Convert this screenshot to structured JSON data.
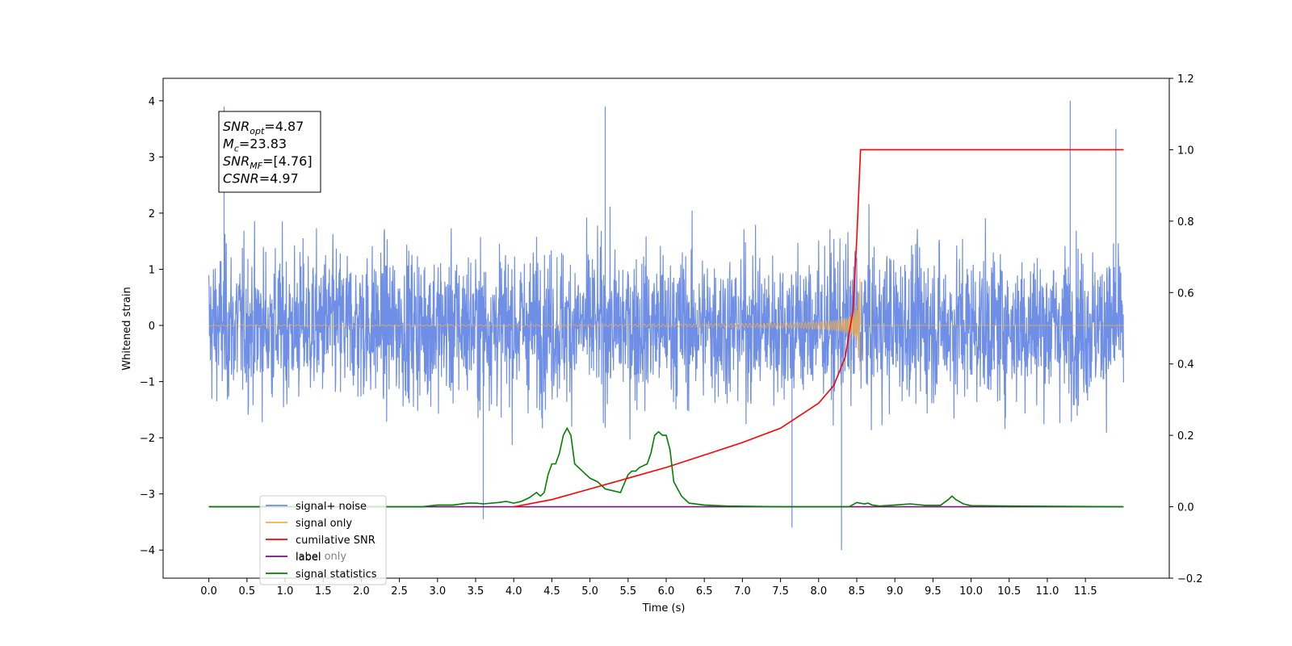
{
  "chart_data": {
    "type": "line",
    "title": "",
    "xlabel": "Time (s)",
    "ylabel": "Whitened strain",
    "xlim": [
      -0.6,
      12.6
    ],
    "ylim": [
      -4.5,
      4.4
    ],
    "y2lim": [
      -0.2,
      1.2
    ],
    "x_ticks": [
      0.0,
      0.5,
      1.0,
      1.5,
      2.0,
      2.5,
      3.0,
      3.5,
      4.0,
      4.5,
      5.0,
      5.5,
      6.0,
      6.5,
      7.0,
      7.5,
      8.0,
      8.5,
      9.0,
      9.5,
      10.0,
      10.5,
      11.0,
      11.5
    ],
    "x_tick_labels": [
      "0.0",
      "0.5",
      "1.0",
      "1.5",
      "2.0",
      "2.5",
      "3.0",
      "3.5",
      "4.0",
      "4.5",
      "5.0",
      "5.5",
      "6.0",
      "6.5",
      "7.0",
      "7.5",
      "8.0",
      "8.5",
      "9.0",
      "9.5",
      "10.0",
      "10.5",
      "11.0",
      "11.5"
    ],
    "y_ticks": [
      -4,
      -3,
      -2,
      -1,
      0,
      1,
      2,
      3,
      4
    ],
    "y_tick_labels": [
      "−4",
      "−3",
      "−2",
      "−1",
      "0",
      "1",
      "2",
      "3",
      "4"
    ],
    "y2_ticks": [
      -0.2,
      0.0,
      0.2,
      0.4,
      0.6,
      0.8,
      1.0,
      1.2
    ],
    "y2_tick_labels": [
      "−0.2",
      "0.0",
      "0.2",
      "0.4",
      "0.6",
      "0.8",
      "1.0",
      "1.2"
    ],
    "legend_placement": "lower-left",
    "grid": false,
    "series": [
      {
        "name": "signal+ noise",
        "color": "#6f8ee6",
        "axis": "left",
        "x_range": [
          0.0,
          12.0
        ],
        "envelope_typical": [
          -1.8,
          1.8
        ],
        "peaks": [
          {
            "x": 0.2,
            "y": 3.9
          },
          {
            "x": 5.2,
            "y": 3.9
          },
          {
            "x": 11.3,
            "y": 4.0
          },
          {
            "x": 11.9,
            "y": 3.5
          },
          {
            "x": 8.3,
            "y": -4.0
          },
          {
            "x": 7.65,
            "y": -3.6
          },
          {
            "x": 3.6,
            "y": -3.45
          }
        ]
      },
      {
        "name": "signal only",
        "color": "#f5b041",
        "axis": "left",
        "x_range": [
          0.0,
          12.0
        ],
        "chirp_end": 8.55,
        "max_amplitude": 1.15
      },
      {
        "name": "cumilative SNR",
        "color": "#ff0000",
        "axis": "right",
        "x": [
          4.0,
          4.5,
          5.0,
          5.5,
          6.0,
          6.5,
          7.0,
          7.5,
          8.0,
          8.2,
          8.35,
          8.45,
          8.5,
          8.55,
          12.0
        ],
        "y": [
          0.0,
          0.02,
          0.05,
          0.08,
          0.11,
          0.145,
          0.18,
          0.22,
          0.29,
          0.34,
          0.42,
          0.55,
          0.75,
          1.0,
          1.0
        ]
      },
      {
        "name": "label",
        "color": "#7b0f7b",
        "axis": "right",
        "x": [
          0.0,
          12.0
        ],
        "y": [
          0.0,
          0.0
        ]
      },
      {
        "name": "signal statistics",
        "color": "#008000",
        "axis": "right",
        "x": [
          0.0,
          2.8,
          3.0,
          3.2,
          3.4,
          3.5,
          3.6,
          3.8,
          3.9,
          4.0,
          4.1,
          4.2,
          4.3,
          4.35,
          4.4,
          4.45,
          4.5,
          4.55,
          4.6,
          4.65,
          4.7,
          4.75,
          4.8,
          4.9,
          5.0,
          5.1,
          5.2,
          5.3,
          5.4,
          5.5,
          5.55,
          5.6,
          5.65,
          5.7,
          5.75,
          5.8,
          5.85,
          5.9,
          5.95,
          6.0,
          6.05,
          6.1,
          6.2,
          6.3,
          6.5,
          6.8,
          7.5,
          8.4,
          8.5,
          8.6,
          8.65,
          8.7,
          8.8,
          9.0,
          9.2,
          9.4,
          9.6,
          9.7,
          9.75,
          9.8,
          9.9,
          10.0,
          10.5,
          12.0
        ],
        "y": [
          0.0,
          0.0,
          0.005,
          0.005,
          0.01,
          0.01,
          0.008,
          0.012,
          0.015,
          0.01,
          0.015,
          0.025,
          0.04,
          0.03,
          0.04,
          0.09,
          0.12,
          0.12,
          0.15,
          0.2,
          0.22,
          0.2,
          0.12,
          0.1,
          0.08,
          0.07,
          0.05,
          0.045,
          0.04,
          0.09,
          0.1,
          0.1,
          0.11,
          0.115,
          0.12,
          0.15,
          0.2,
          0.21,
          0.2,
          0.2,
          0.16,
          0.07,
          0.03,
          0.01,
          0.005,
          0.002,
          0.0,
          0.0,
          0.012,
          0.008,
          0.01,
          0.005,
          0.002,
          0.005,
          0.008,
          0.004,
          0.004,
          0.02,
          0.03,
          0.02,
          0.008,
          0.003,
          0.002,
          0.0
        ]
      }
    ],
    "legend": [
      {
        "label": "signal+ noise",
        "color": "#6f8ee6"
      },
      {
        "label": "signal only",
        "color": "#f5b041"
      },
      {
        "label": "cumilative SNR",
        "color": "#ff0000"
      },
      {
        "label": "label",
        "color": "#7b0f7b"
      },
      {
        "label": "signal statistics",
        "color": "#008000"
      }
    ],
    "annotation": [
      {
        "base": "SNR",
        "sub": "opt",
        "rest": "=4.87"
      },
      {
        "base": "M",
        "sub": "c",
        "rest": "=23.83"
      },
      {
        "base": "SNR",
        "sub": "MF",
        "rest": "=[4.76]"
      },
      {
        "base": "CSNR",
        "sub": "",
        "rest": "=4.97"
      }
    ],
    "ghost_legend_text": "label only"
  }
}
